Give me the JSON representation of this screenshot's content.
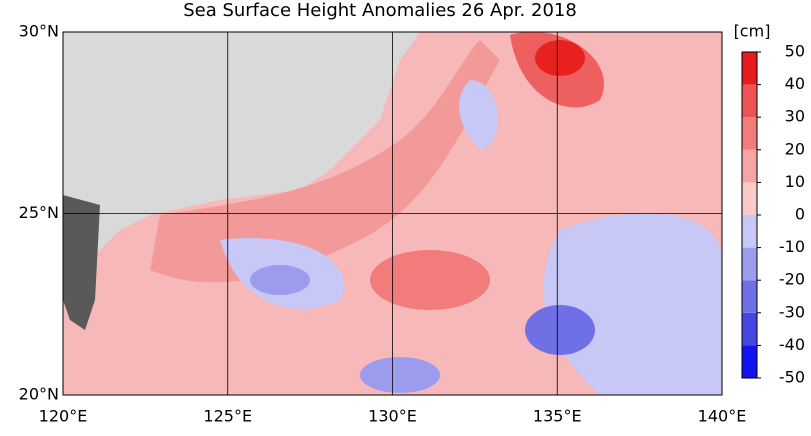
{
  "title": "Sea Surface Height Anomalies  26 Apr. 2018",
  "map": {
    "xlim": [
      120,
      140
    ],
    "ylim": [
      20,
      30
    ],
    "xticks": [
      {
        "value": 120,
        "label": "120°E"
      },
      {
        "value": 125,
        "label": "125°E"
      },
      {
        "value": 130,
        "label": "130°E"
      },
      {
        "value": 135,
        "label": "135°E"
      },
      {
        "value": 140,
        "label": "140°E"
      }
    ],
    "yticks": [
      {
        "value": 20,
        "label": "20°N"
      },
      {
        "value": 25,
        "label": "25°N"
      },
      {
        "value": 30,
        "label": "30°N"
      }
    ],
    "grid": true
  },
  "colorbar": {
    "unit": "[cm]",
    "lim": [
      -50,
      50
    ],
    "ticks": [
      -50,
      -40,
      -30,
      -20,
      -10,
      0,
      10,
      20,
      30,
      40,
      50
    ],
    "colors": [
      "#1414f0",
      "#4646e2",
      "#7070e6",
      "#9c9cee",
      "#c8c8f6",
      "#f8caca",
      "#f6a4a4",
      "#f27c7c",
      "#ee5454",
      "#e81c1c"
    ]
  }
}
